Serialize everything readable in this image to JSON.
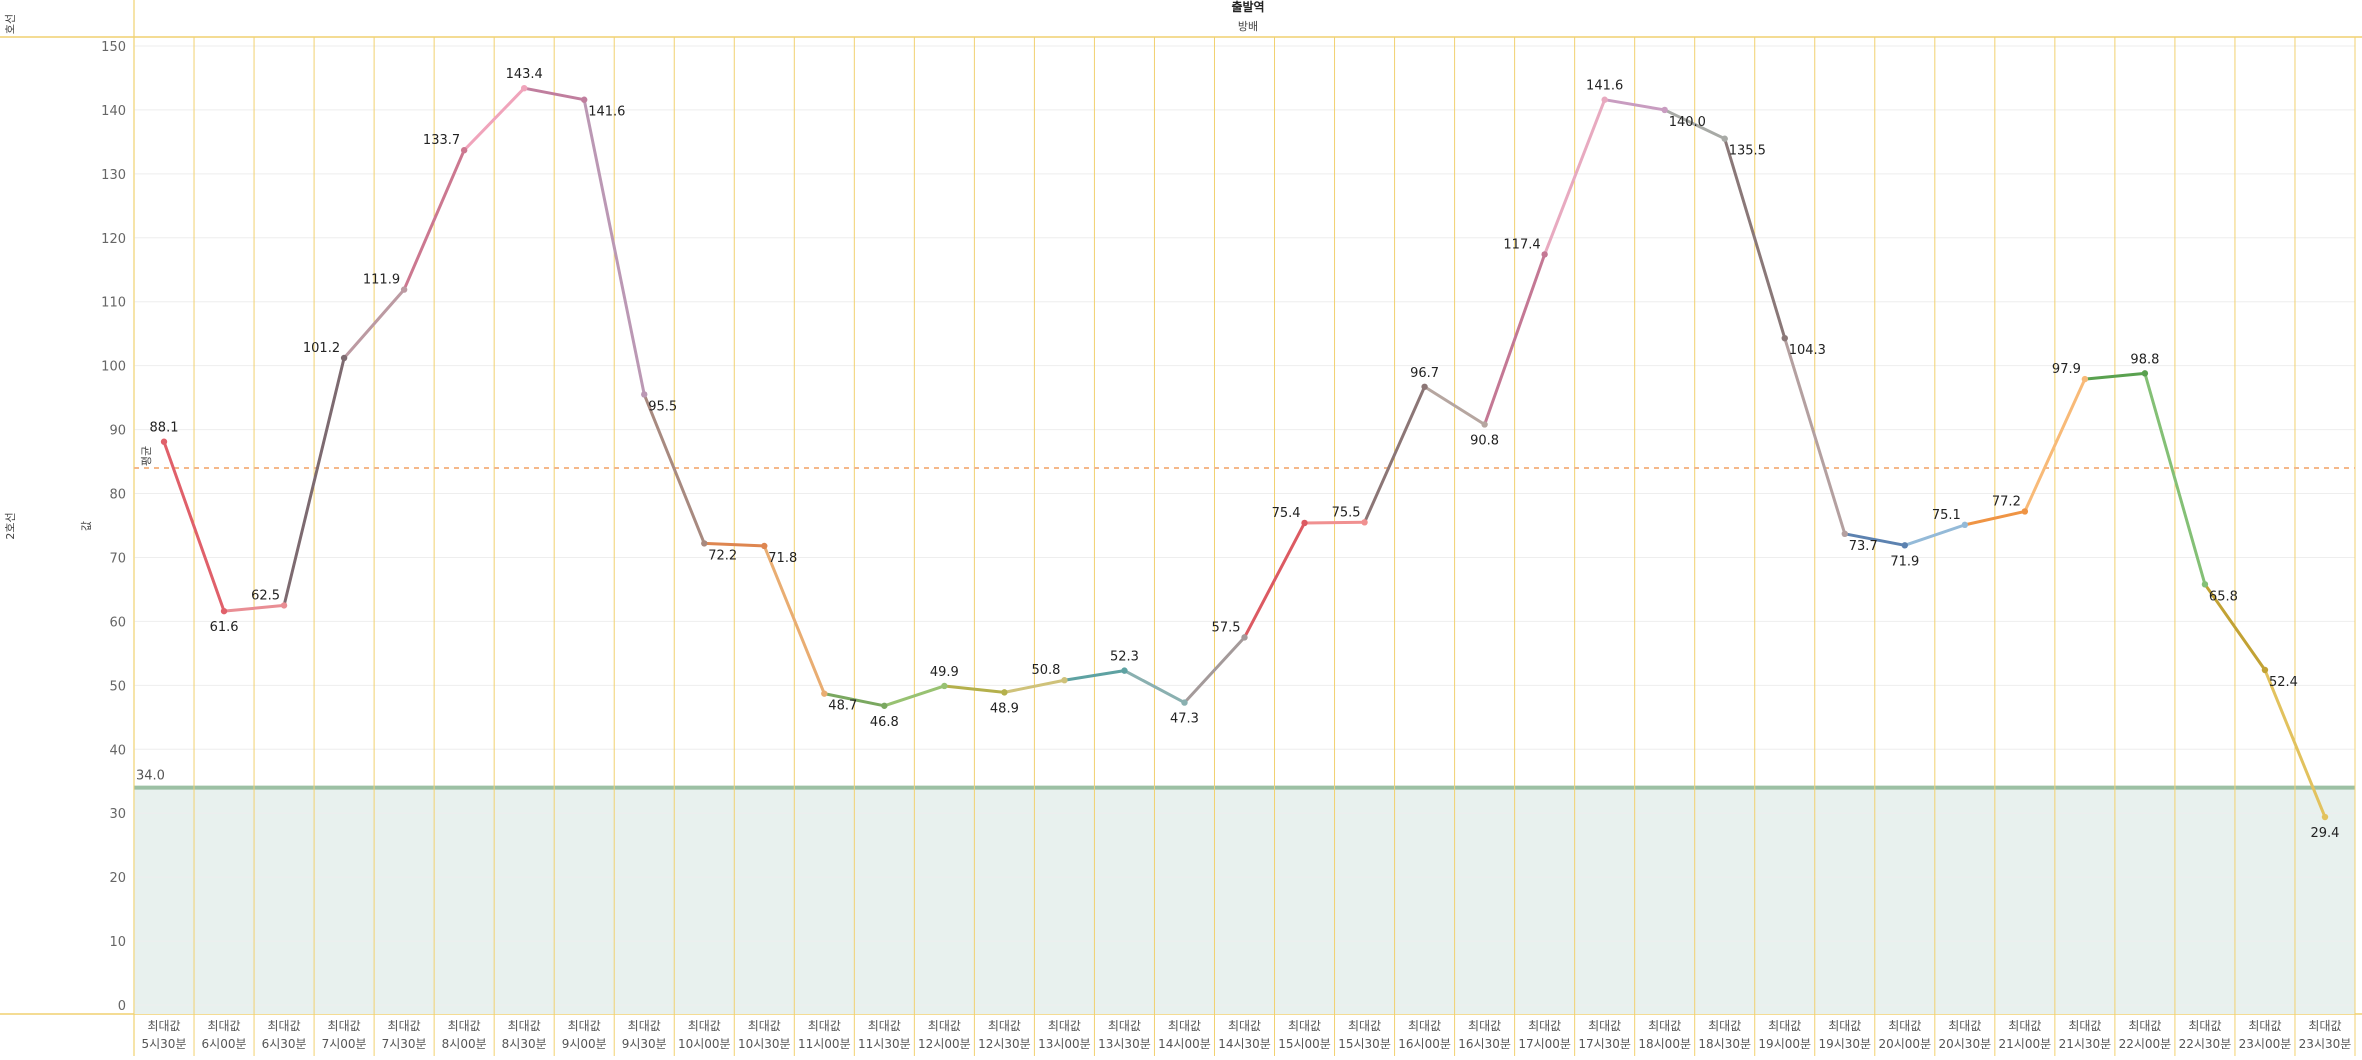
{
  "header": {
    "top_title": "출발역",
    "sub_title": "방배",
    "row_title": "호선",
    "row_value": "2호선",
    "measure_title": "값",
    "ref_line_label": "평균"
  },
  "chart_data": {
    "type": "line",
    "x": [
      "5시30분",
      "6시00분",
      "6시30분",
      "7시00분",
      "7시30분",
      "8시00분",
      "8시30분",
      "9시00분",
      "9시30분",
      "10시00분",
      "10시30분",
      "11시00분",
      "11시30분",
      "12시00분",
      "12시30분",
      "13시00분",
      "13시30분",
      "14시00분",
      "14시30분",
      "15시00분",
      "15시30분",
      "16시00분",
      "16시30분",
      "17시00분",
      "17시30분",
      "18시00분",
      "18시30분",
      "19시00분",
      "19시30분",
      "20시00분",
      "20시30분",
      "21시00분",
      "21시30분",
      "22시00분",
      "22시30분",
      "23시00분",
      "23시30분"
    ],
    "x_measure_label": "최대값",
    "series": [
      {
        "values": [
          88.1,
          61.6,
          62.5,
          101.2,
          111.9,
          133.7,
          143.4,
          141.6,
          95.5,
          72.2,
          71.8,
          48.7,
          46.8,
          49.9,
          48.9,
          50.8,
          52.3,
          47.3,
          57.5,
          75.4,
          75.5,
          96.7,
          90.8,
          117.4,
          141.6,
          140.0,
          135.5,
          104.3,
          73.7,
          71.9,
          75.1,
          77.2,
          97.9,
          98.8,
          65.8,
          52.4,
          29.4
        ],
        "value_labels": [
          "88.1",
          "61.6",
          "62.5",
          "101.2",
          "111.9",
          "133.7",
          "143.4",
          "141.6",
          "95.5",
          "72.2",
          "71.8",
          "48.7",
          "46.8",
          "49.9",
          "48.9",
          "50.8",
          "52.3",
          "47.3",
          "57.5",
          "75.4",
          "75.5",
          "96.7",
          "90.8",
          "117.4",
          "141.6",
          "140.0",
          "135.5",
          "104.3",
          "73.7",
          "71.9",
          "75.1",
          "77.2",
          "97.9",
          "98.8",
          "65.8",
          "52.4",
          "29.4"
        ]
      }
    ],
    "segment_colors": [
      "#e0606a",
      "#e98e94",
      "#7d6a70",
      "#bc9aa2",
      "#cc7890",
      "#f0a4bb",
      "#c07e9e",
      "#bb98b4",
      "#a88a80",
      "#de8650",
      "#e9ad72",
      "#7aa860",
      "#98c272",
      "#b4b04c",
      "#cfc27a",
      "#5ea2a2",
      "#8ab0b0",
      "#a49a9a",
      "#dc5a62",
      "#f09090",
      "#8c7676",
      "#b6a6a0",
      "#c47894",
      "#e8aac0",
      "#c89cc0",
      "#a8aaa6",
      "#8a7878",
      "#b4a0a0",
      "#5c82b0",
      "#94bad8",
      "#ef9444",
      "#f8ba78",
      "#59a14f",
      "#84c076",
      "#c2a234",
      "#e2c25e",
      "#52a096"
    ],
    "ylim": [
      0,
      150
    ],
    "yticks": [
      0,
      10,
      20,
      30,
      40,
      50,
      60,
      70,
      80,
      90,
      100,
      110,
      120,
      130,
      140,
      150
    ],
    "reference_line": {
      "value": 84,
      "color": "#f5b88a"
    },
    "band": {
      "from": 0,
      "to": 34,
      "label": "34.0",
      "color": "#e8f1ee",
      "line_color": "#9cc0a4"
    },
    "grid": true,
    "colors": {
      "frame": "#f1d170",
      "grid_vertical": "#f1d170",
      "grid_horizontal": "#eeeeee",
      "axis_text": "#666666"
    }
  }
}
